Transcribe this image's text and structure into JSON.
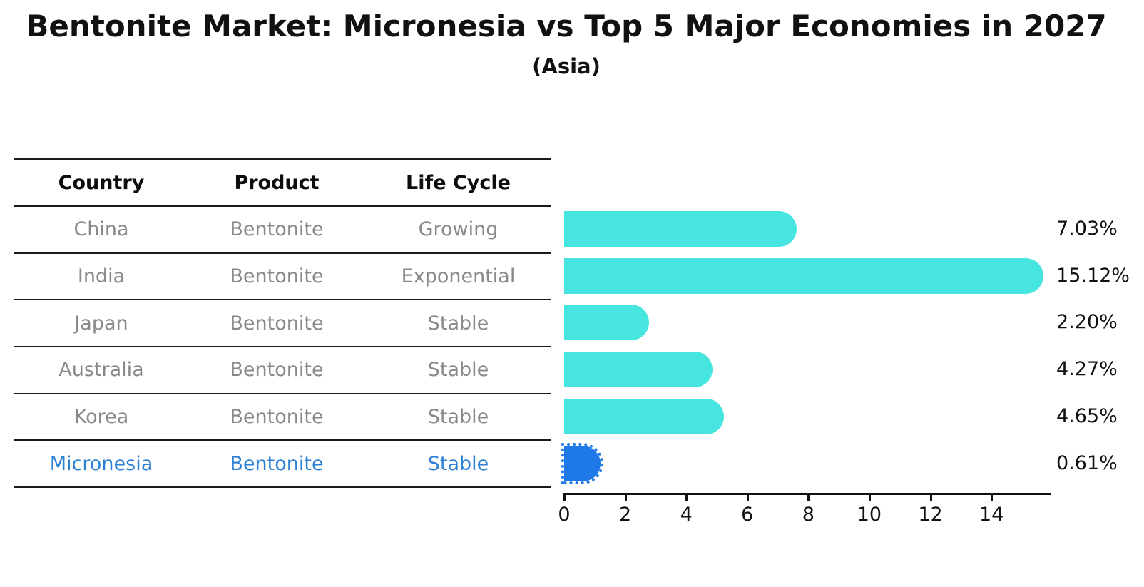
{
  "title": "Bentonite Market: Micronesia vs Top 5 Major Economies in 2027",
  "subtitle": "(Asia)",
  "table": {
    "headers": [
      "Country",
      "Product",
      "Life Cycle"
    ]
  },
  "chart_data": {
    "type": "bar",
    "orientation": "horizontal",
    "title": "Bentonite Market: Micronesia vs Top 5 Major Economies in 2027",
    "subtitle": "(Asia)",
    "xlabel": "",
    "ylabel": "",
    "xlim": [
      0,
      15.89
    ],
    "x_ticks": [
      0,
      2,
      4,
      6,
      8,
      10,
      12,
      14
    ],
    "grid": false,
    "legend": "none",
    "rows": [
      {
        "country": "China",
        "product": "Bentonite",
        "life_cycle": "Growing",
        "value": 7.03,
        "label": "7.03%",
        "highlight": false
      },
      {
        "country": "India",
        "product": "Bentonite",
        "life_cycle": "Exponential",
        "value": 15.12,
        "label": "15.12%",
        "highlight": false
      },
      {
        "country": "Japan",
        "product": "Bentonite",
        "life_cycle": "Stable",
        "value": 2.2,
        "label": "2.20%",
        "highlight": false
      },
      {
        "country": "Australia",
        "product": "Bentonite",
        "life_cycle": "Stable",
        "value": 4.27,
        "label": "4.27%",
        "highlight": false
      },
      {
        "country": "Korea",
        "product": "Bentonite",
        "life_cycle": "Stable",
        "value": 4.65,
        "label": "4.65%",
        "highlight": false
      },
      {
        "country": "Micronesia",
        "product": "Bentonite",
        "life_cycle": "Stable",
        "value": 0.61,
        "label": "0.61%",
        "highlight": true
      }
    ],
    "colors": {
      "bar": "#46e5e0",
      "highlight_bar": "#1e78e8",
      "highlight_text": "#2d80d2",
      "row_text": "#898989",
      "header_text": "#0d0d0d",
      "axis": "#111111"
    }
  }
}
